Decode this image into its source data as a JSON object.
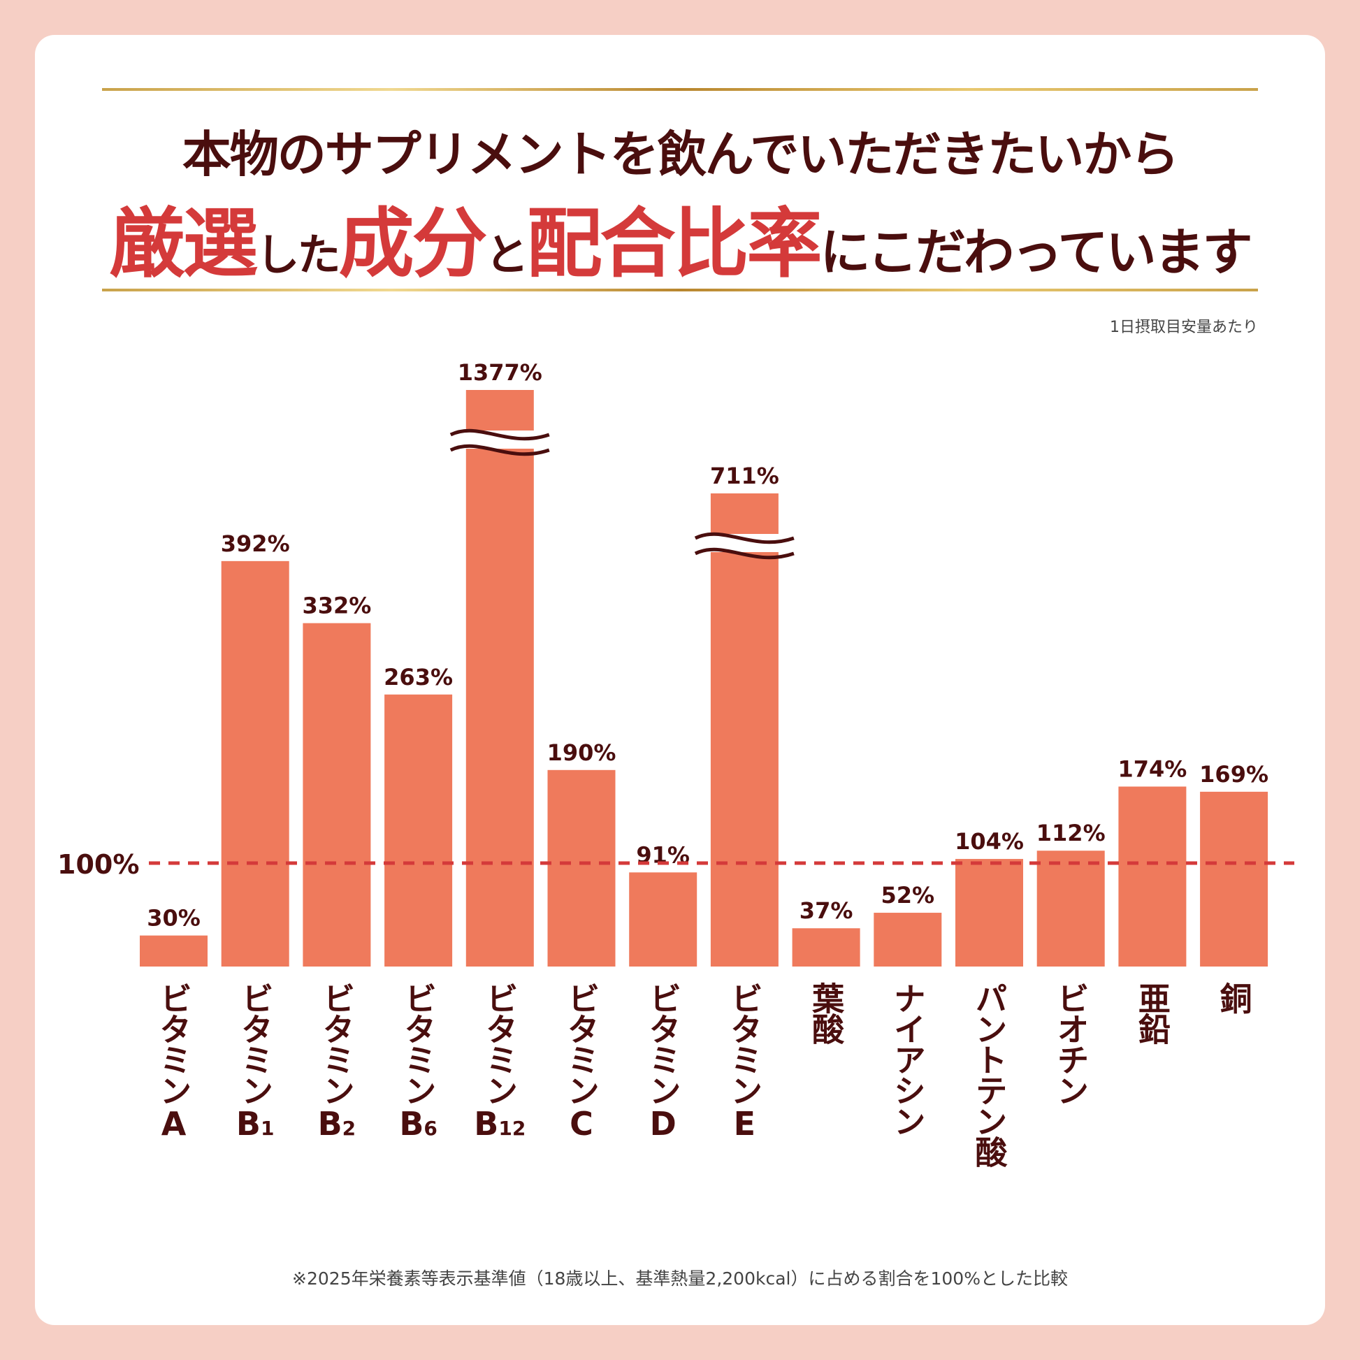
{
  "header": {
    "title_line1": "本物のサプリメントを飲んでいただきたいから",
    "title_line2": [
      {
        "text": "厳選",
        "style": "accent"
      },
      {
        "text": "した",
        "style": "small"
      },
      {
        "text": "成分",
        "style": "accent"
      },
      {
        "text": "と",
        "style": "small"
      },
      {
        "text": "配合比率",
        "style": "accent"
      },
      {
        "text": "にこだわっています",
        "style": "normal"
      }
    ],
    "note": "1日摂取目安量あたり"
  },
  "chart_data": {
    "type": "bar",
    "categories": [
      {
        "main": "ビタミン",
        "suffix": "A",
        "sub": ""
      },
      {
        "main": "ビタミン",
        "suffix": "B",
        "sub": "1"
      },
      {
        "main": "ビタミン",
        "suffix": "B",
        "sub": "2"
      },
      {
        "main": "ビタミン",
        "suffix": "B",
        "sub": "6"
      },
      {
        "main": "ビタミン",
        "suffix": "B",
        "sub": "12"
      },
      {
        "main": "ビタミン",
        "suffix": "C",
        "sub": ""
      },
      {
        "main": "ビタミン",
        "suffix": "D",
        "sub": ""
      },
      {
        "main": "ビタミン",
        "suffix": "E",
        "sub": ""
      },
      {
        "main": "葉酸",
        "suffix": "",
        "sub": ""
      },
      {
        "main": "ナイアシン",
        "suffix": "",
        "sub": ""
      },
      {
        "main": "パントテン酸",
        "suffix": "",
        "sub": ""
      },
      {
        "main": "ビオチン",
        "suffix": "",
        "sub": ""
      },
      {
        "main": "亜鉛",
        "suffix": "",
        "sub": ""
      },
      {
        "main": "銅",
        "suffix": "",
        "sub": ""
      }
    ],
    "values": [
      30,
      392,
      332,
      263,
      1377,
      190,
      91,
      711,
      37,
      52,
      104,
      112,
      174,
      169
    ],
    "value_labels": [
      "30%",
      "392%",
      "332%",
      "263%",
      "1377%",
      "190%",
      "91%",
      "711%",
      "37%",
      "52%",
      "104%",
      "112%",
      "174%",
      "169%"
    ],
    "broken_axis_bars": [
      4,
      7
    ],
    "reference_line": {
      "value": 100,
      "label": "100%",
      "style": "dashed",
      "color": "#d43a3a"
    },
    "bar_color": "#ef7a5c",
    "label_color": "#4a0e0e"
  },
  "footnote": "※2025年栄養素等表示基準値（18歳以上、基準熱量2,200kcal）に占める割合を100%とした比較"
}
